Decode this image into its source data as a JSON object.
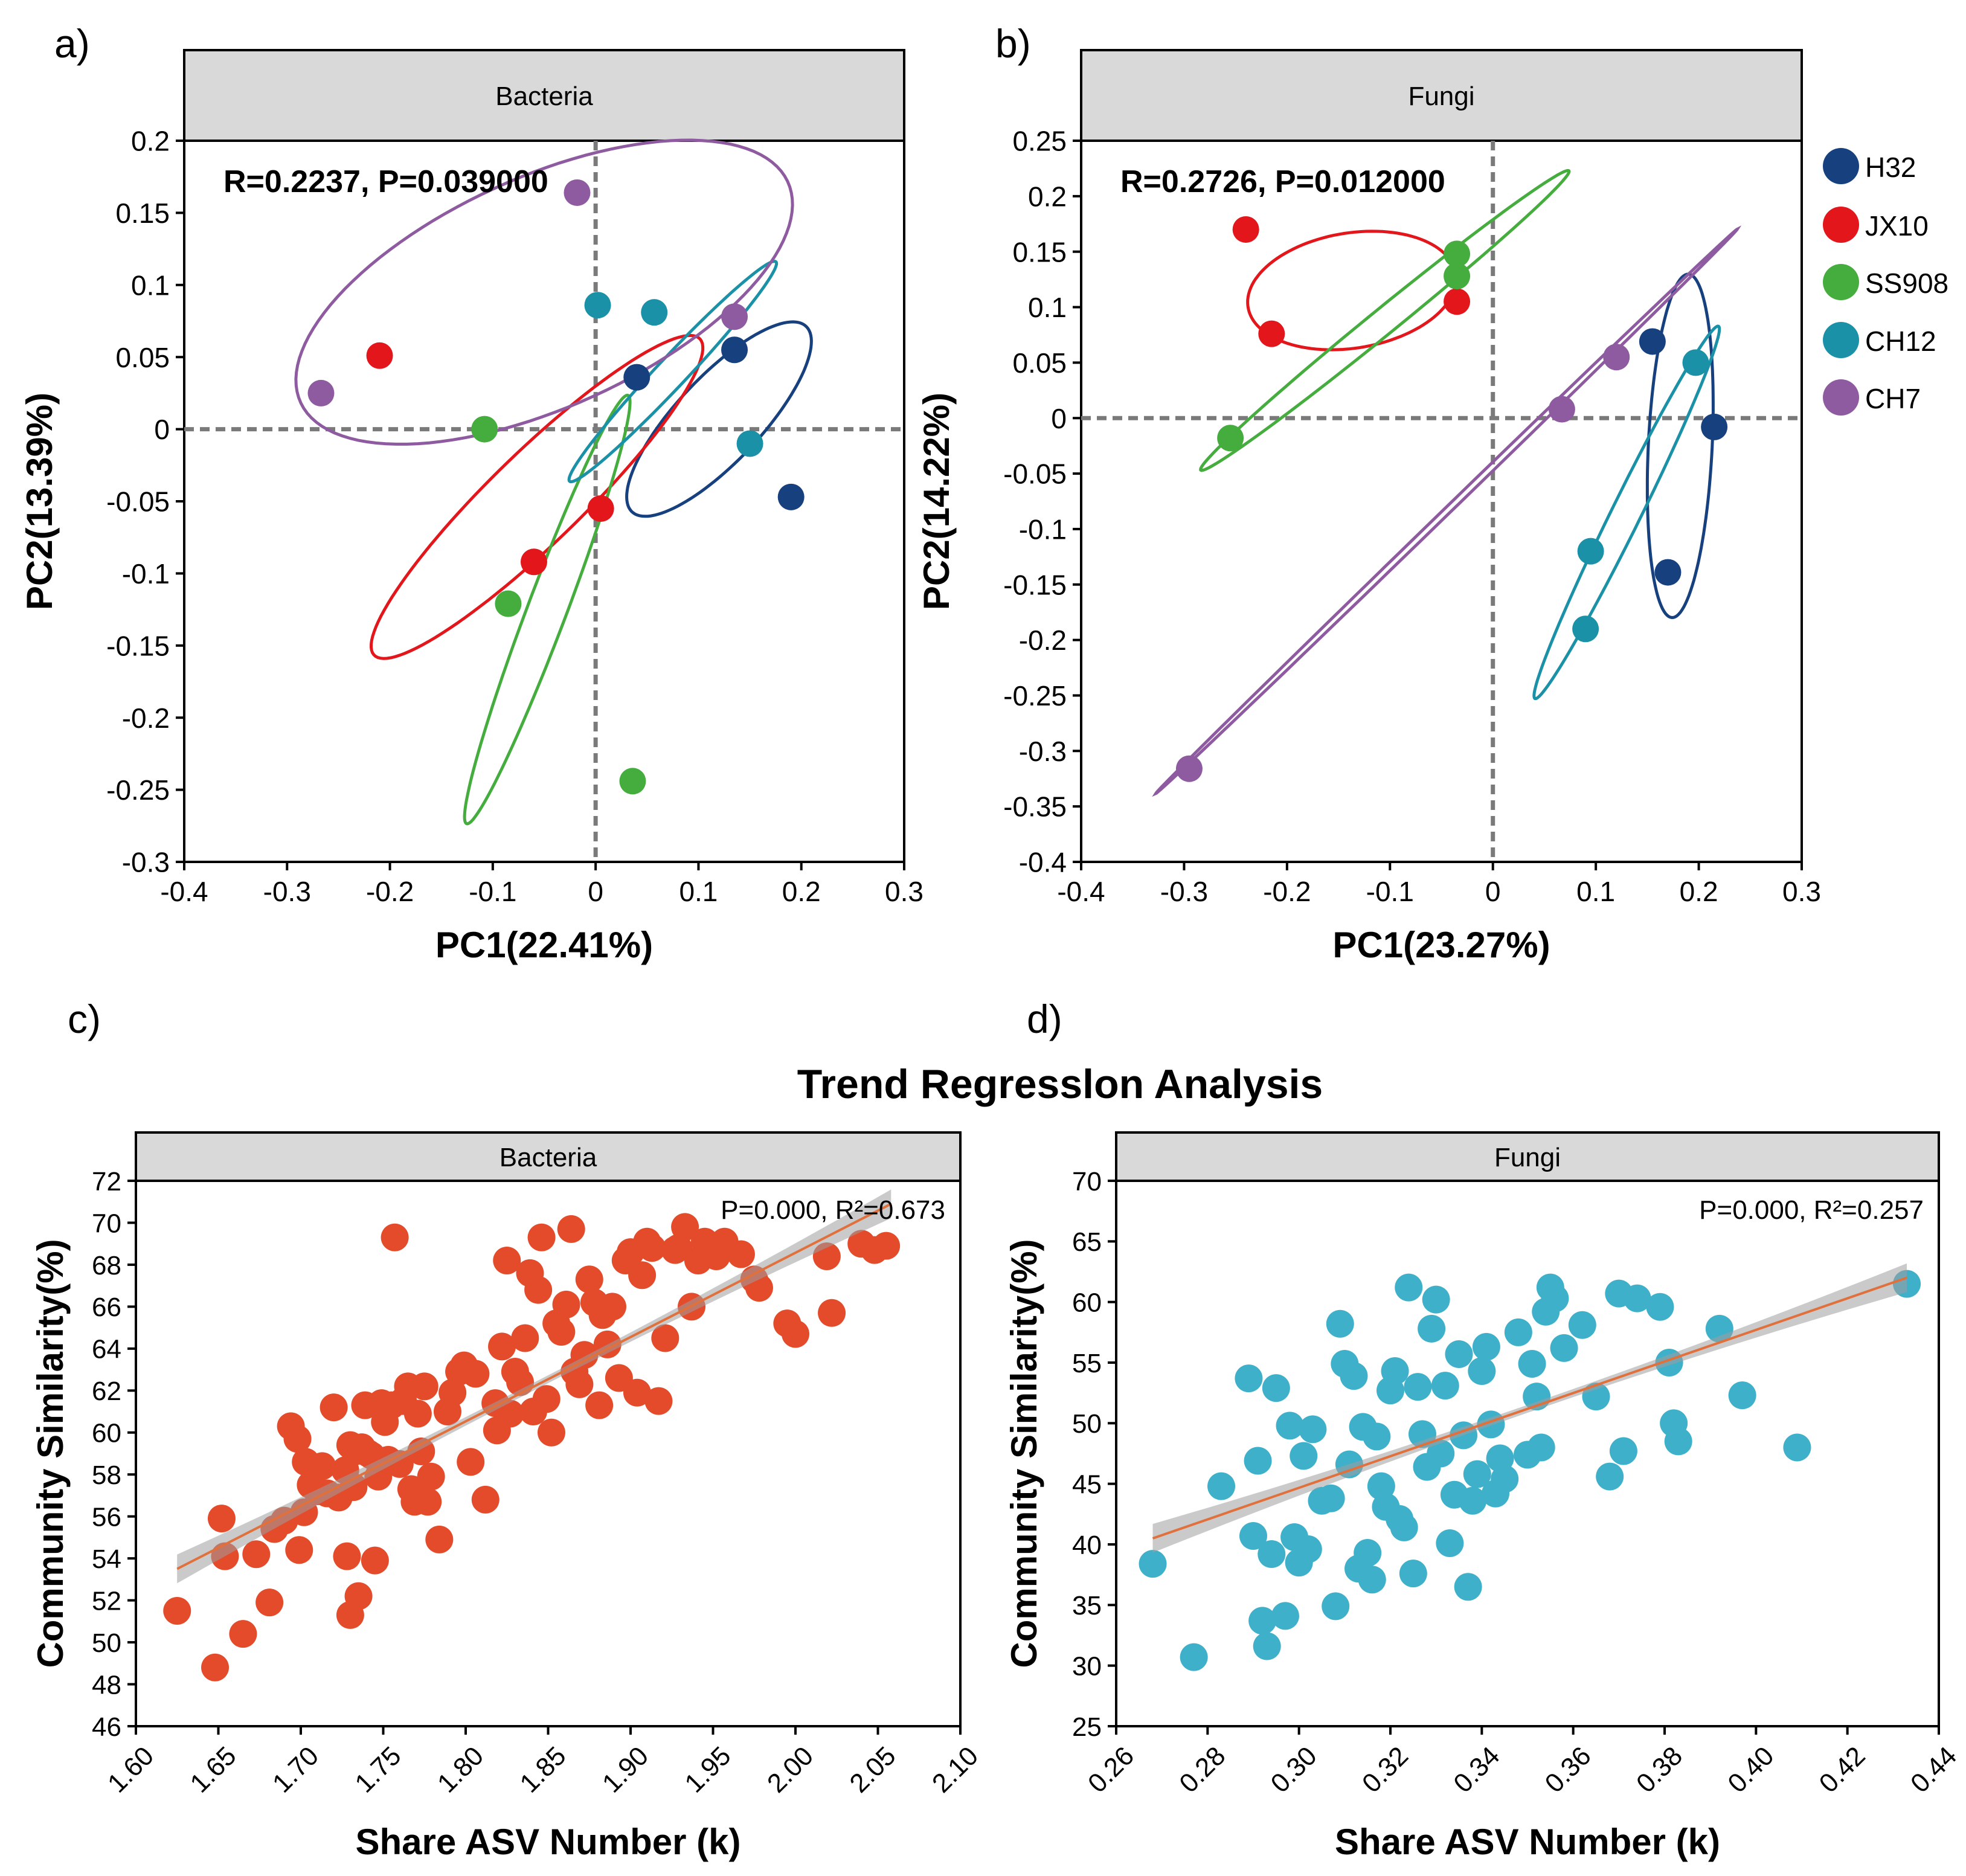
{
  "figure": {
    "panel_labels": [
      "a)",
      "b)",
      "c)",
      "d)"
    ],
    "main_title": "Trend Regresslon Analysis"
  },
  "legend": {
    "entries": [
      {
        "label": "H32",
        "color": "#17407e"
      },
      {
        "label": "JX10",
        "color": "#e3161c"
      },
      {
        "label": "SS908",
        "color": "#45ac3e"
      },
      {
        "label": "CH12",
        "color": "#1b91a8"
      },
      {
        "label": "CH7",
        "color": "#8e5aa0"
      }
    ]
  },
  "chart_data": [
    {
      "type": "scatter",
      "panel": "a)",
      "strip_title": "Bacteria",
      "annotation": "R=0.2237, P=0.039000",
      "xlabel": "PC1(22.41%)",
      "ylabel": "PC2(13.39%)",
      "xlim": [
        -0.4,
        0.3
      ],
      "ylim": [
        -0.3,
        0.2
      ],
      "xticks": [
        -0.4,
        -0.3,
        -0.2,
        -0.1,
        0,
        0.1,
        0.2,
        0.3
      ],
      "yticks": [
        -0.3,
        -0.25,
        -0.2,
        -0.15,
        -0.1,
        -0.05,
        0,
        0.05,
        0.1,
        0.15,
        0.2
      ],
      "xtick_labels": [
        "-0.4",
        "-0.3",
        "-0.2",
        "-0.1",
        "0",
        "0.1",
        "0.2",
        "0.3"
      ],
      "ytick_labels": [
        "-0.3",
        "-0.25",
        "-0.2",
        "-0.15",
        "-0.1",
        "-0.05",
        "0",
        "0.05",
        "0.1",
        "0.15",
        "0.2"
      ],
      "reference_lines": {
        "x": 0,
        "y": 0
      },
      "series": [
        {
          "name": "H32",
          "color": "#17407e",
          "points": [
            [
              0.135,
              0.055
            ],
            [
              0.04,
              0.036
            ],
            [
              0.19,
              -0.047
            ]
          ],
          "ellipse": {
            "cx": 0.12,
            "cy": 0.007,
            "rx": 0.107,
            "ry": 0.034,
            "angle": 35
          }
        },
        {
          "name": "JX10",
          "color": "#e3161c",
          "points": [
            [
              -0.21,
              0.051
            ],
            [
              0.005,
              -0.055
            ],
            [
              -0.06,
              -0.092
            ]
          ],
          "ellipse": {
            "cx": -0.057,
            "cy": -0.047,
            "rx": 0.193,
            "ry": 0.036,
            "angle": 34
          }
        },
        {
          "name": "SS908",
          "color": "#45ac3e",
          "points": [
            [
              -0.108,
              0.0
            ],
            [
              -0.085,
              -0.121
            ],
            [
              0.036,
              -0.244
            ]
          ],
          "ellipse": {
            "cx": -0.047,
            "cy": -0.125,
            "rx": 0.168,
            "ry": 0.018,
            "angle": 62
          }
        },
        {
          "name": "CH12",
          "color": "#1b91a8",
          "points": [
            [
              0.002,
              0.086
            ],
            [
              0.057,
              0.081
            ],
            [
              0.15,
              -0.01
            ]
          ],
          "ellipse": {
            "cx": 0.075,
            "cy": 0.04,
            "rx": 0.126,
            "ry": 0.012,
            "angle": 37
          }
        },
        {
          "name": "CH7",
          "color": "#8e5aa0",
          "points": [
            [
              -0.018,
              0.164
            ],
            [
              -0.267,
              0.025
            ],
            [
              0.135,
              0.078
            ]
          ],
          "ellipse": {
            "cx": -0.05,
            "cy": 0.095,
            "rx": 0.25,
            "ry": 0.083,
            "angle": 16
          }
        }
      ]
    },
    {
      "type": "scatter",
      "panel": "b)",
      "strip_title": "Fungi",
      "annotation": "R=0.2726, P=0.012000",
      "xlabel": "PC1(23.27%)",
      "ylabel": "PC2(14.22%)",
      "xlim": [
        -0.4,
        0.3
      ],
      "ylim": [
        -0.4,
        0.25
      ],
      "xticks": [
        -0.4,
        -0.3,
        -0.2,
        -0.1,
        0,
        0.1,
        0.2,
        0.3
      ],
      "yticks": [
        -0.4,
        -0.35,
        -0.3,
        -0.25,
        -0.2,
        -0.15,
        -0.1,
        -0.05,
        0,
        0.05,
        0.1,
        0.15,
        0.2,
        0.25
      ],
      "xtick_labels": [
        "-0.4",
        "-0.3",
        "-0.2",
        "-0.1",
        "0",
        "0.1",
        "0.2",
        "0.3"
      ],
      "ytick_labels": [
        "-0.4",
        "-0.35",
        "-0.3",
        "-0.25",
        "-0.2",
        "-0.15",
        "-0.1",
        "-0.05",
        "0",
        "0.05",
        "0.1",
        "0.15",
        "0.2",
        "0.25"
      ],
      "reference_lines": {
        "x": 0,
        "y": 0
      },
      "series": [
        {
          "name": "H32",
          "color": "#17407e",
          "points": [
            [
              0.155,
              0.069
            ],
            [
              0.215,
              -0.008
            ],
            [
              0.17,
              -0.139
            ]
          ],
          "ellipse": {
            "cx": 0.182,
            "cy": -0.025,
            "rx": 0.155,
            "ry": 0.031,
            "angle": 87
          }
        },
        {
          "name": "JX10",
          "color": "#e3161c",
          "points": [
            [
              -0.24,
              0.17
            ],
            [
              -0.215,
              0.076
            ],
            [
              -0.035,
              0.105
            ]
          ],
          "ellipse": {
            "cx": -0.137,
            "cy": 0.115,
            "rx": 0.102,
            "ry": 0.052,
            "angle": 8
          }
        },
        {
          "name": "SS908",
          "color": "#45ac3e",
          "points": [
            [
              -0.255,
              -0.018
            ],
            [
              -0.035,
              0.148
            ],
            [
              -0.035,
              0.128
            ]
          ],
          "ellipse": {
            "cx": -0.105,
            "cy": 0.088,
            "rx": 0.224,
            "ry": 0.012,
            "angle": 37
          }
        },
        {
          "name": "CH12",
          "color": "#1b91a8",
          "points": [
            [
              0.095,
              -0.12
            ],
            [
              0.09,
              -0.19
            ],
            [
              0.197,
              0.05
            ]
          ],
          "ellipse": {
            "cx": 0.13,
            "cy": -0.085,
            "rx": 0.19,
            "ry": 0.014,
            "angle": 62
          }
        },
        {
          "name": "CH7",
          "color": "#8e5aa0",
          "points": [
            [
              0.067,
              0.008
            ],
            [
              0.12,
              0.055
            ],
            [
              -0.295,
              -0.316
            ]
          ],
          "ellipse": {
            "cx": -0.045,
            "cy": -0.084,
            "rx": 0.38,
            "ry": 0.003,
            "angle": 42
          }
        }
      ]
    },
    {
      "type": "scatter",
      "panel": "c)",
      "strip_title": "Bacteria",
      "annotation": "P=0.000, R²=0.673",
      "xlabel": "Share ASV Number (k)",
      "ylabel": "Community Similarity(%)",
      "xlim": [
        1.6,
        2.1
      ],
      "ylim": [
        46,
        72
      ],
      "xticks": [
        1.6,
        1.65,
        1.7,
        1.75,
        1.8,
        1.85,
        1.9,
        1.95,
        2.0,
        2.05,
        2.1
      ],
      "yticks": [
        46,
        48,
        50,
        52,
        54,
        56,
        58,
        60,
        62,
        64,
        66,
        68,
        70,
        72
      ],
      "xtick_labels": [
        "1.60",
        "1.65",
        "1.70",
        "1.75",
        "1.80",
        "1.85",
        "1.90",
        "1.95",
        "2.00",
        "2.05",
        "2.10"
      ],
      "ytick_labels": [
        "46",
        "48",
        "50",
        "52",
        "54",
        "56",
        "58",
        "60",
        "62",
        "64",
        "66",
        "68",
        "70",
        "72"
      ],
      "point_color": "#e34b2a",
      "regression": {
        "x0": 1.625,
        "y0": 53.5,
        "x1": 2.058,
        "y1": 70.9
      },
      "x": [
        1.625,
        1.648,
        1.652,
        1.654,
        1.665,
        1.673,
        1.681,
        1.684,
        1.69,
        1.694,
        1.698,
        1.699,
        1.702,
        1.703,
        1.706,
        1.708,
        1.71,
        1.713,
        1.716,
        1.72,
        1.723,
        1.727,
        1.728,
        1.73,
        1.73,
        1.732,
        1.733,
        1.735,
        1.737,
        1.739,
        1.741,
        1.743,
        1.745,
        1.747,
        1.749,
        1.751,
        1.753,
        1.755,
        1.757,
        1.76,
        1.762,
        1.765,
        1.767,
        1.769,
        1.771,
        1.773,
        1.775,
        1.777,
        1.779,
        1.784,
        1.789,
        1.792,
        1.796,
        1.799,
        1.803,
        1.806,
        1.812,
        1.818,
        1.819,
        1.822,
        1.825,
        1.827,
        1.83,
        1.833,
        1.836,
        1.839,
        1.841,
        1.844,
        1.846,
        1.849,
        1.852,
        1.855,
        1.858,
        1.861,
        1.864,
        1.866,
        1.869,
        1.872,
        1.875,
        1.878,
        1.881,
        1.883,
        1.886,
        1.889,
        1.893,
        1.897,
        1.9,
        1.904,
        1.907,
        1.91,
        1.913,
        1.917,
        1.921,
        1.927,
        1.929,
        1.933,
        1.937,
        1.941,
        1.945,
        1.952,
        1.957,
        1.967,
        1.975,
        1.978,
        1.995,
        2.0,
        2.019,
        2.022,
        2.04,
        2.048,
        2.055
      ],
      "y": [
        51.5,
        48.8,
        55.9,
        54.1,
        50.4,
        54.2,
        51.9,
        55.4,
        55.8,
        60.3,
        59.7,
        54.4,
        56.2,
        58.6,
        57.5,
        58.3,
        57.2,
        58.4,
        57.1,
        61.2,
        56.9,
        58.2,
        54.1,
        51.3,
        59.4,
        57.4,
        59.1,
        52.2,
        59.3,
        61.3,
        59.0,
        58.9,
        53.9,
        57.9,
        61.4,
        60.5,
        58.7,
        61.3,
        69.3,
        58.5,
        61.5,
        62.2,
        57.3,
        56.7,
        60.9,
        59.1,
        62.2,
        56.7,
        57.9,
        54.9,
        61.0,
        61.9,
        62.9,
        63.2,
        58.6,
        62.8,
        56.8,
        61.4,
        60.1,
        64.1,
        68.2,
        60.9,
        62.9,
        62.4,
        64.5,
        67.6,
        61.0,
        66.8,
        69.3,
        61.6,
        60.0,
        65.2,
        64.8,
        66.1,
        69.7,
        62.9,
        62.3,
        63.7,
        67.3,
        66.2,
        61.3,
        65.6,
        64.2,
        66.0,
        62.6,
        68.2,
        68.6,
        61.9,
        67.5,
        69.1,
        68.8,
        61.5,
        64.5,
        68.7,
        68.8,
        69.8,
        66.0,
        68.2,
        69.1,
        68.4,
        69.1,
        68.5,
        67.3,
        66.9,
        65.2,
        64.7,
        68.4,
        65.7,
        69.0,
        68.7,
        68.9
      ]
    },
    {
      "type": "scatter",
      "panel": "d)",
      "strip_title": "Fungi",
      "annotation": "P=0.000, R²=0.257",
      "xlabel": "Share ASV Number (k)",
      "ylabel": "Community Similarity(%)",
      "xlim": [
        0.26,
        0.44
      ],
      "ylim": [
        25,
        70
      ],
      "xticks": [
        0.26,
        0.28,
        0.3,
        0.32,
        0.34,
        0.36,
        0.38,
        0.4,
        0.42,
        0.44
      ],
      "yticks": [
        25,
        30,
        35,
        40,
        45,
        50,
        55,
        60,
        65,
        70
      ],
      "xtick_labels": [
        "0.26",
        "0.28",
        "0.30",
        "0.32",
        "0.34",
        "0.36",
        "0.38",
        "0.40",
        "0.42",
        "0.44"
      ],
      "ytick_labels": [
        "25",
        "30",
        "35",
        "40",
        "45",
        "50",
        "55",
        "60",
        "65",
        "70"
      ],
      "point_color": "#3fb0c9",
      "regression": {
        "x0": 0.268,
        "y0": 40.5,
        "x1": 0.433,
        "y1": 62.0
      },
      "x": [
        0.268,
        0.277,
        0.283,
        0.289,
        0.29,
        0.291,
        0.292,
        0.293,
        0.294,
        0.295,
        0.297,
        0.298,
        0.299,
        0.3,
        0.301,
        0.302,
        0.303,
        0.305,
        0.307,
        0.308,
        0.309,
        0.31,
        0.311,
        0.312,
        0.313,
        0.314,
        0.315,
        0.316,
        0.317,
        0.318,
        0.319,
        0.32,
        0.321,
        0.322,
        0.323,
        0.324,
        0.325,
        0.326,
        0.327,
        0.328,
        0.329,
        0.33,
        0.331,
        0.332,
        0.333,
        0.334,
        0.335,
        0.336,
        0.337,
        0.338,
        0.339,
        0.34,
        0.341,
        0.342,
        0.343,
        0.344,
        0.345,
        0.348,
        0.35,
        0.351,
        0.352,
        0.353,
        0.354,
        0.355,
        0.356,
        0.358,
        0.362,
        0.365,
        0.368,
        0.37,
        0.371,
        0.374,
        0.379,
        0.381,
        0.382,
        0.383,
        0.392,
        0.397,
        0.409,
        0.433
      ],
      "y": [
        38.4,
        30.7,
        44.8,
        53.7,
        40.7,
        46.9,
        33.7,
        31.6,
        39.2,
        52.9,
        34.1,
        49.8,
        40.6,
        38.5,
        47.3,
        39.6,
        49.5,
        43.6,
        43.8,
        34.9,
        58.2,
        54.9,
        46.6,
        53.9,
        38.0,
        49.7,
        39.3,
        37.1,
        48.9,
        44.8,
        43.1,
        52.7,
        54.3,
        42.1,
        41.4,
        61.2,
        37.6,
        53.0,
        49.1,
        46.4,
        57.8,
        60.2,
        47.5,
        53.1,
        40.1,
        44.1,
        55.7,
        49.0,
        36.5,
        43.6,
        45.8,
        54.3,
        56.3,
        49.9,
        44.2,
        47.1,
        45.4,
        57.5,
        47.4,
        54.9,
        52.2,
        48.0,
        59.2,
        61.2,
        60.3,
        56.2,
        58.1,
        52.2,
        45.6,
        60.7,
        47.7,
        60.3,
        59.6,
        55.0,
        50.0,
        48.5,
        57.8,
        52.3,
        48.0,
        61.5
      ]
    }
  ]
}
